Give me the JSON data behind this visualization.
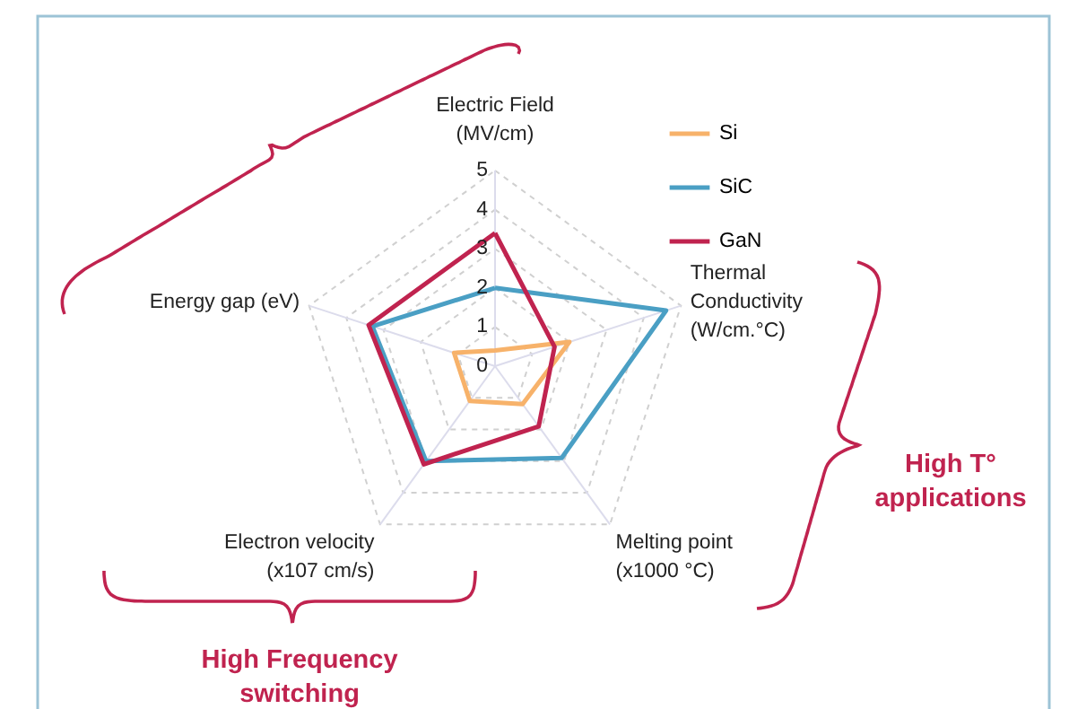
{
  "chart_data": {
    "type": "radar",
    "categories": [
      "Electric Field\n(MV/cm)",
      "Thermal\nConductivity\n(W/cm.°C)",
      "Melting point\n(x1000 °C)",
      "Electron velocity\n(x107 cm/s)",
      "Energy gap (eV)"
    ],
    "series": [
      {
        "name": "Si",
        "color": "#f7b26a",
        "values": [
          0.4,
          2.0,
          1.2,
          1.1,
          1.1
        ]
      },
      {
        "name": "SiC",
        "color": "#4a9fc4",
        "values": [
          2.0,
          4.6,
          2.9,
          3.0,
          3.3
        ]
      },
      {
        "name": "GaN",
        "color": "#c0234f",
        "values": [
          3.4,
          1.6,
          1.9,
          3.1,
          3.4
        ]
      }
    ],
    "ylim": [
      0,
      5
    ],
    "yticks": [
      0,
      1,
      2,
      3,
      4,
      5
    ],
    "grid": true,
    "legend": "top right",
    "annotations": [
      "High Frequency\nswitching",
      "High T°\napplications"
    ]
  }
}
